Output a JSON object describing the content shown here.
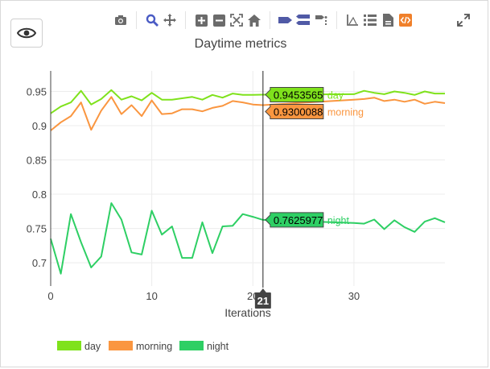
{
  "toolbar": {
    "icons": [
      "eye-icon",
      "camera-icon",
      "zoom-icon",
      "pan-icon",
      "zoom-in-icon",
      "zoom-out-icon",
      "autoscale-icon",
      "home-icon",
      "spike-lines-icon",
      "compare-hover-icon",
      "closest-hover-icon",
      "axis-icon",
      "list-icon",
      "file-icon",
      "code-icon",
      "expand-icon"
    ],
    "active_color": "#4a5bc4",
    "code_icon_color": "#f0802a"
  },
  "chart_data": {
    "type": "line",
    "title": "Daytime metrics",
    "xlabel": "Iterations",
    "ylabel": "",
    "xlim": [
      0,
      39
    ],
    "ylim": [
      0.666,
      0.98
    ],
    "xticks": [
      0,
      10,
      20,
      30
    ],
    "yticks": [
      0.7,
      0.75,
      0.8,
      0.85,
      0.9,
      0.95
    ],
    "grid": true,
    "legend_position": "bottom-left",
    "series": [
      {
        "name": "day",
        "color": "#7fe21c",
        "x": [
          0,
          1,
          2,
          3,
          4,
          5,
          6,
          7,
          8,
          9,
          10,
          11,
          12,
          13,
          14,
          15,
          16,
          17,
          18,
          19,
          20,
          21,
          30,
          31,
          32,
          33,
          34,
          35,
          36,
          37,
          38,
          39
        ],
        "values": [
          0.918,
          0.928,
          0.934,
          0.951,
          0.931,
          0.939,
          0.952,
          0.938,
          0.943,
          0.937,
          0.948,
          0.938,
          0.938,
          0.94,
          0.942,
          0.938,
          0.945,
          0.941,
          0.947,
          0.945,
          0.945,
          0.9453565,
          0.946,
          0.951,
          0.948,
          0.946,
          0.95,
          0.948,
          0.945,
          0.95,
          0.947,
          0.947
        ]
      },
      {
        "name": "morning",
        "color": "#fa9640",
        "x": [
          0,
          1,
          2,
          3,
          4,
          5,
          6,
          7,
          8,
          9,
          10,
          11,
          12,
          13,
          14,
          15,
          16,
          17,
          18,
          19,
          20,
          21,
          30,
          31,
          32,
          33,
          34,
          35,
          36,
          37,
          38,
          39
        ],
        "values": [
          0.893,
          0.905,
          0.914,
          0.934,
          0.894,
          0.922,
          0.942,
          0.917,
          0.93,
          0.914,
          0.937,
          0.917,
          0.918,
          0.924,
          0.924,
          0.921,
          0.926,
          0.929,
          0.936,
          0.934,
          0.931,
          0.9300088,
          0.938,
          0.939,
          0.941,
          0.936,
          0.938,
          0.935,
          0.938,
          0.932,
          0.935,
          0.933
        ]
      },
      {
        "name": "night",
        "color": "#2ecf64",
        "x": [
          0,
          1,
          2,
          3,
          4,
          5,
          6,
          7,
          8,
          9,
          10,
          11,
          12,
          13,
          14,
          15,
          16,
          17,
          18,
          19,
          20,
          21,
          30,
          31,
          32,
          33,
          34,
          35,
          36,
          37,
          38,
          39
        ],
        "values": [
          0.735,
          0.684,
          0.771,
          0.73,
          0.693,
          0.709,
          0.787,
          0.763,
          0.715,
          0.712,
          0.776,
          0.741,
          0.753,
          0.707,
          0.707,
          0.759,
          0.714,
          0.753,
          0.754,
          0.771,
          0.767,
          0.7625977,
          0.758,
          0.757,
          0.763,
          0.749,
          0.762,
          0.752,
          0.745,
          0.76,
          0.765,
          0.759
        ]
      }
    ],
    "hover": {
      "x": 21,
      "x_label": "21",
      "labels": [
        {
          "series": "day",
          "value_text": "0.9453565",
          "name": "day"
        },
        {
          "series": "morning",
          "value_text": "0.9300088",
          "name": "morning"
        },
        {
          "series": "night",
          "value_text": "0.7625977",
          "name": "night"
        }
      ]
    }
  }
}
